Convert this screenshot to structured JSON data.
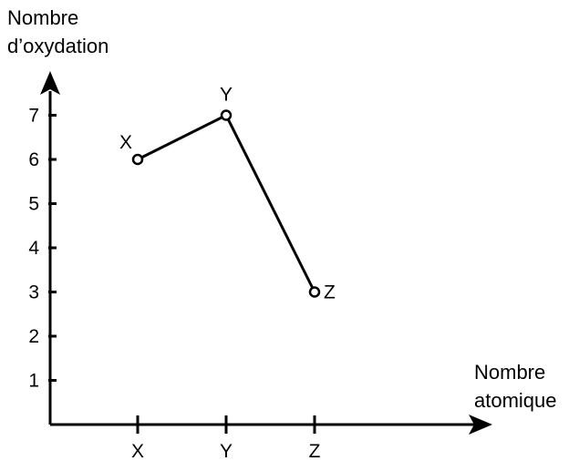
{
  "chart_data": {
    "type": "line",
    "ylabel_lines": [
      "Nombre",
      "d’oxydation"
    ],
    "xlabel_lines": [
      "Nombre",
      "atomique"
    ],
    "categories": [
      "X",
      "Y",
      "Z"
    ],
    "yticks": [
      1,
      2,
      3,
      4,
      5,
      6,
      7
    ],
    "ylim": [
      0,
      7.5
    ],
    "series": [
      {
        "points": [
          {
            "x": "X",
            "y": 6,
            "label": "X"
          },
          {
            "x": "Y",
            "y": 7,
            "label": "Y"
          },
          {
            "x": "Z",
            "y": 3,
            "label": "Z"
          }
        ]
      }
    ],
    "grid": false,
    "colors": {
      "line": "#000000",
      "marker_fill": "#ffffff"
    }
  }
}
